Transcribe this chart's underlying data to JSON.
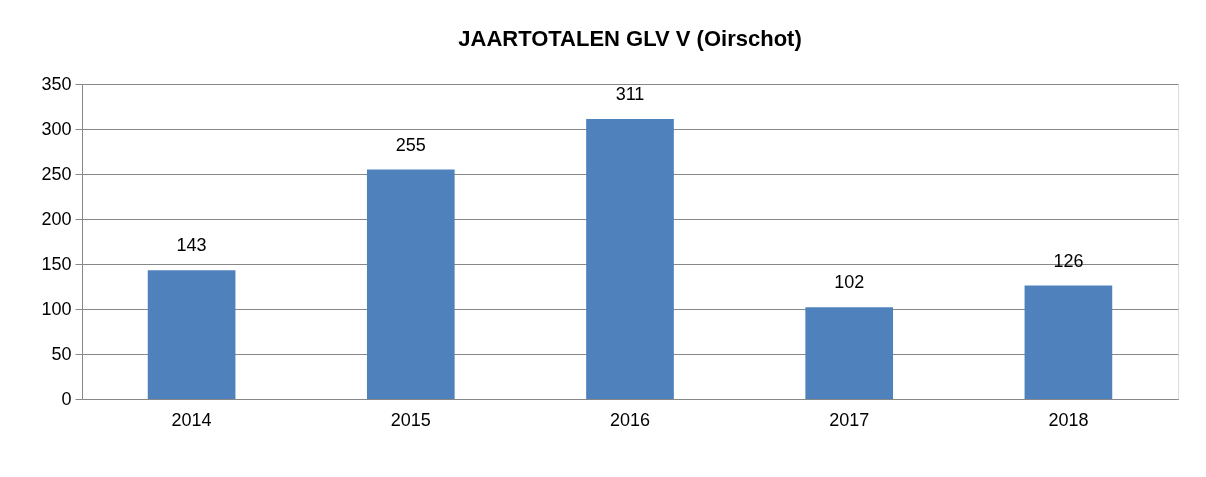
{
  "chart_data": {
    "type": "bar",
    "title": "JAARTOTALEN GLV V (Oirschot)",
    "categories": [
      "2014",
      "2015",
      "2016",
      "2017",
      "2018"
    ],
    "values": [
      143,
      255,
      311,
      102,
      126
    ],
    "color": "#4f81bd",
    "ylim": [
      0,
      350
    ],
    "yticks": [
      0,
      50,
      100,
      150,
      200,
      250,
      300,
      350
    ],
    "grid": "y",
    "data_labels": true
  }
}
